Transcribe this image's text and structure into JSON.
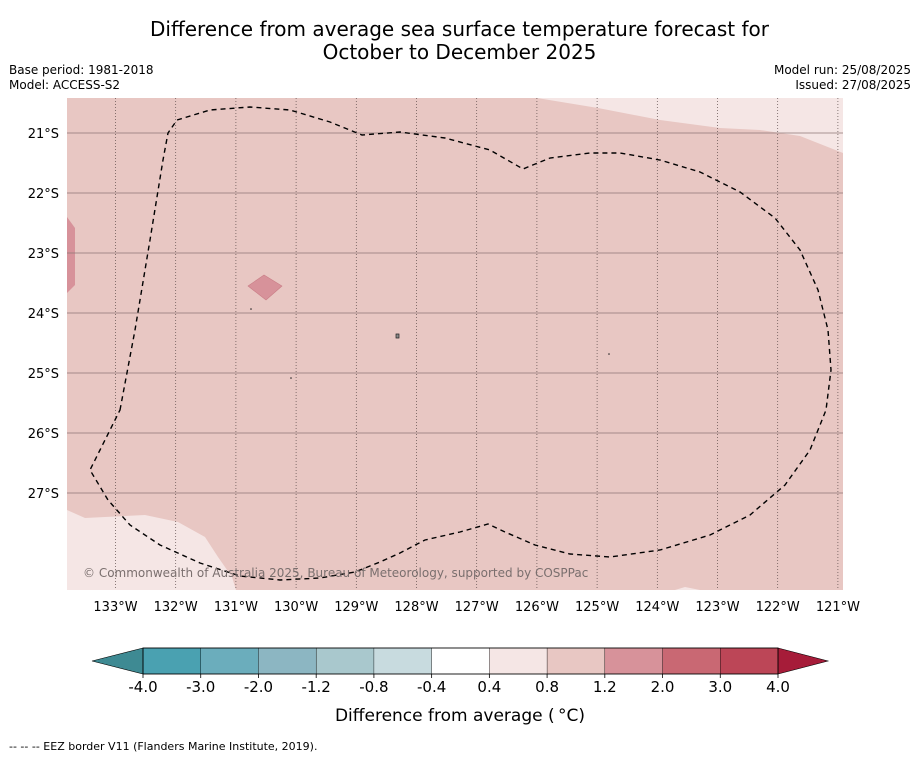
{
  "title_line1": "Difference from average sea surface temperature forecast for",
  "title_line2": "October to December 2025",
  "meta_left": {
    "base_period": "Base period: 1981-2018",
    "model": "Model: ACCESS-S2"
  },
  "meta_right": {
    "model_run": "Model run: 25/08/2025",
    "issued": "Issued: 27/08/2025"
  },
  "map": {
    "lat_labels": [
      "21°S",
      "22°S",
      "23°S",
      "24°S",
      "25°S",
      "26°S",
      "27°S"
    ],
    "lon_labels": [
      "133°W",
      "132°W",
      "131°W",
      "130°W",
      "129°W",
      "128°W",
      "127°W",
      "126°W",
      "125°W",
      "124°W",
      "123°W",
      "122°W",
      "121°W"
    ],
    "copyright": "© Commonwealth of Australia 2025, Bureau of Meteorology, supported by COSPPac",
    "colors": {
      "dominant": "#e8c7c3",
      "light": "#f5e6e5",
      "warm": "#d7929a"
    }
  },
  "colorbar": {
    "tick_labels": [
      "-4.0",
      "-3.0",
      "-2.0",
      "-1.2",
      "-0.8",
      "-0.4",
      "0.4",
      "0.8",
      "1.2",
      "2.0",
      "3.0",
      "4.0"
    ],
    "colors": [
      "#3e8a93",
      "#4aa1b1",
      "#6badbc",
      "#8cb6c2",
      "#a9c8cd",
      "#c8dbdf",
      "#ffffff",
      "#f5e6e5",
      "#e8c7c3",
      "#d7929a",
      "#c96873",
      "#bc4657",
      "#a61c39"
    ],
    "label": "Difference from average ( °C)"
  },
  "footer": "-- -- -- EEZ border V11 (Flanders Marine Institute, 2019)."
}
